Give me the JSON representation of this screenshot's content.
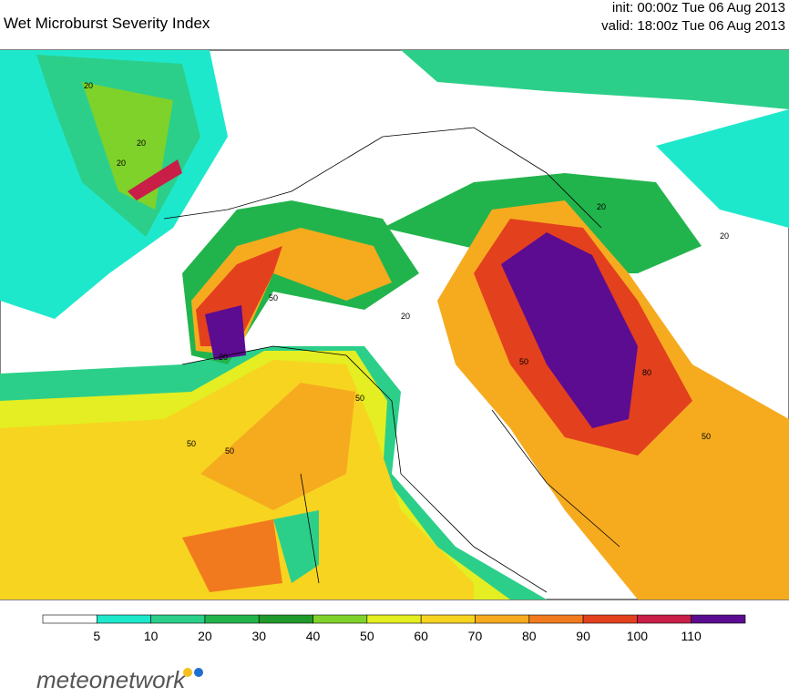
{
  "header": {
    "title": "Wet Microburst Severity Index",
    "init": "init: 00:00z Tue 06 Aug 2013",
    "valid": "valid: 18:00z Tue 06 Aug 2013"
  },
  "colorbar": {
    "ticks": [
      5,
      10,
      20,
      30,
      40,
      50,
      60,
      70,
      80,
      90,
      100,
      110
    ],
    "colors": [
      "#ffffff",
      "#1ee8cc",
      "#2ccf8a",
      "#22b44c",
      "#1f9a2a",
      "#7fd22a",
      "#e4ee22",
      "#f7d420",
      "#f6ab1f",
      "#f27a1e",
      "#e3401e",
      "#c81e48",
      "#5c0c90"
    ]
  },
  "map": {
    "contour_labels": [
      "20",
      "20",
      "20",
      "50",
      "50",
      "50",
      "20",
      "50",
      "20",
      "20",
      "50",
      "80",
      "50",
      "20"
    ]
  },
  "footer": {
    "logo": "meteonetwork"
  }
}
